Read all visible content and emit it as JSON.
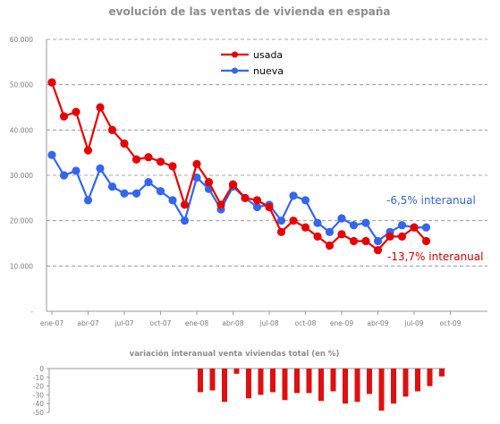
{
  "chart_data": [
    {
      "type": "line",
      "title": "evolución de las ventas de vivienda en españa",
      "xlabel": "",
      "ylabel": "",
      "ylim": [
        0,
        60000
      ],
      "y_ticks": [
        "-",
        "10.000",
        "20.000",
        "30.000",
        "40.000",
        "50.000",
        "60.000"
      ],
      "x_ticks": [
        "ene-07",
        "abr-07",
        "jul-07",
        "oct-07",
        "ene-08",
        "abr-08",
        "jul-08",
        "oct-08",
        "ene-09",
        "abr-09",
        "jul-09",
        "oct-09"
      ],
      "grid": true,
      "legend_position": "top-center",
      "x": [
        "ene-07",
        "feb-07",
        "mar-07",
        "abr-07",
        "may-07",
        "jun-07",
        "jul-07",
        "ago-07",
        "sep-07",
        "oct-07",
        "nov-07",
        "dic-07",
        "ene-08",
        "feb-08",
        "mar-08",
        "abr-08",
        "may-08",
        "jun-08",
        "jul-08",
        "ago-08",
        "sep-08",
        "oct-08",
        "nov-08",
        "dic-08",
        "ene-09",
        "feb-09",
        "mar-09",
        "abr-09",
        "may-09",
        "jun-09",
        "jul-09",
        "ago-09"
      ],
      "series": [
        {
          "name": "usada",
          "color": "#e60000",
          "values": [
            50500,
            43000,
            44000,
            35500,
            45000,
            40000,
            37000,
            33500,
            34000,
            33000,
            32000,
            23500,
            32500,
            28500,
            23500,
            28000,
            25000,
            24500,
            23000,
            17500,
            20000,
            18500,
            16500,
            14500,
            17000,
            15500,
            15500,
            13500,
            16500,
            16500,
            18500,
            15500
          ]
        },
        {
          "name": "nueva",
          "color": "#3366ee",
          "values": [
            34500,
            30000,
            31000,
            24500,
            31500,
            27500,
            26000,
            26000,
            28500,
            26500,
            24500,
            20000,
            29500,
            27000,
            22500,
            27500,
            25000,
            23000,
            23500,
            20000,
            25500,
            24500,
            19500,
            17500,
            20500,
            19000,
            19500,
            15500,
            17500,
            19000,
            18500,
            18500
          ]
        }
      ],
      "annotations": [
        {
          "text": "-6,5% interanual",
          "color": "#3366cc"
        },
        {
          "text": "-13,7% interanual",
          "color": "#cc0000"
        }
      ]
    },
    {
      "type": "bar",
      "title": "variación interanual venta viviendas total (en %)",
      "ylim": [
        -50,
        0
      ],
      "y_ticks": [
        "0",
        "-10",
        "-20",
        "-30",
        "-40",
        "-50"
      ],
      "grid": false,
      "color": "#dd1111",
      "values": [
        -27,
        -25,
        -38,
        -6,
        -34,
        -30,
        -27,
        -36,
        -28,
        -28,
        -37,
        -26,
        -40,
        -38,
        -29,
        -48,
        -40,
        -32,
        -26,
        -20,
        -9
      ]
    }
  ]
}
